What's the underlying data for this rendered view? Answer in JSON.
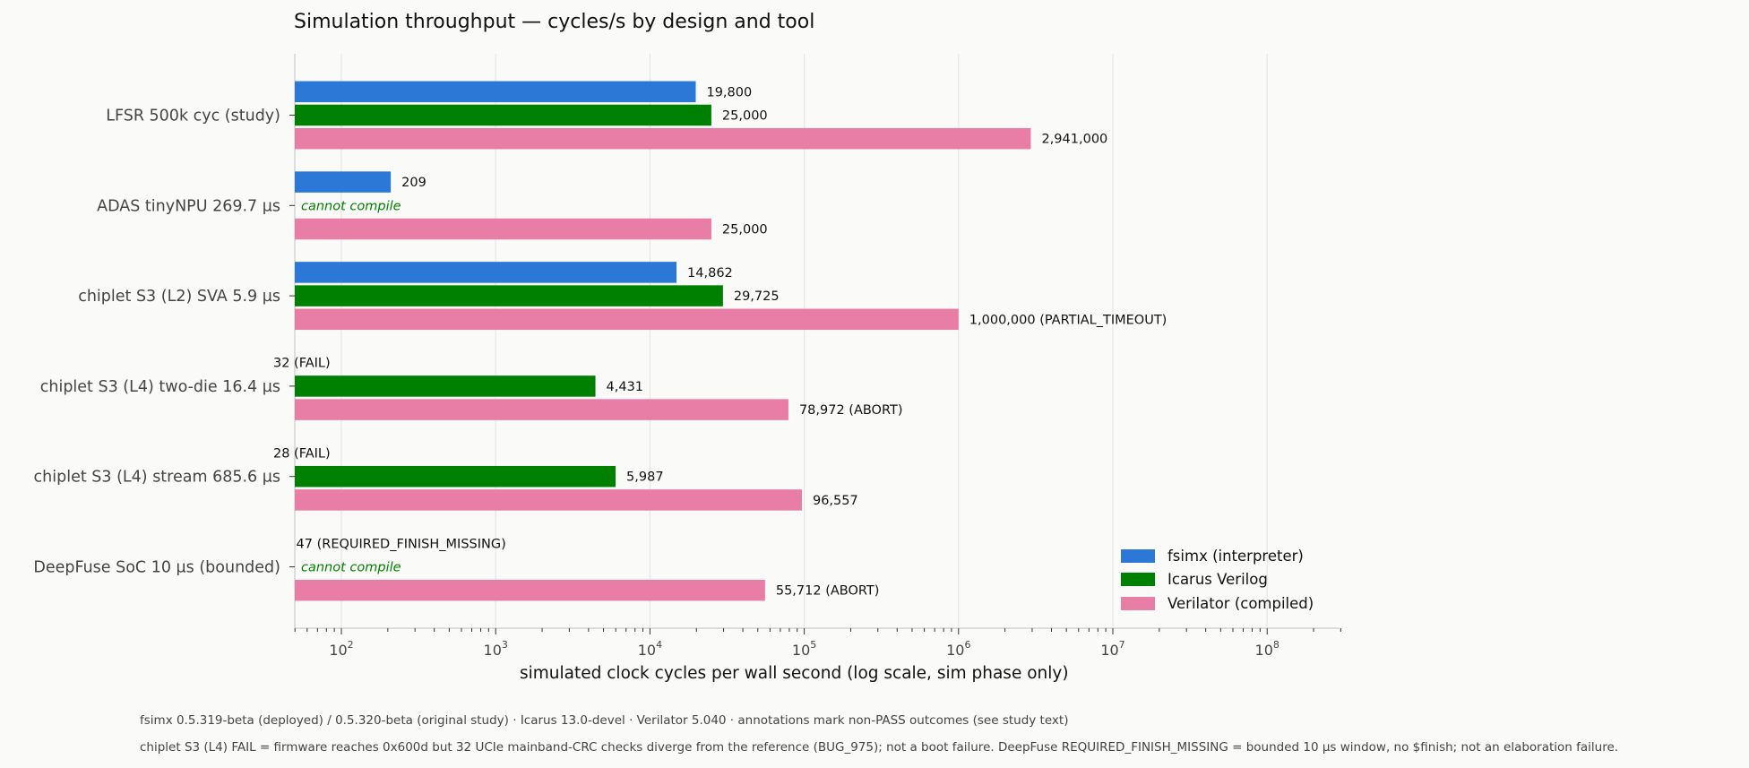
{
  "title": "Simulation throughput — cycles/s by design and tool",
  "xlabel": "simulated clock cycles per wall second (log scale, sim phase only)",
  "footnotes": [
    "fsimx 0.5.319-beta (deployed) / 0.5.320-beta (original study) · Icarus 13.0-devel · Verilator 5.040 · annotations mark non-PASS outcomes (see study text)",
    "chiplet S3 (L4) FAIL = firmware reaches 0x600d but 32 UCIe mainband-CRC checks diverge from the reference (BUG_975); not a boot failure.  DeepFuse REQUIRED_FINISH_MISSING = bounded 10 µs window, no $finish; not an elaboration failure."
  ],
  "colors": {
    "fsimx": "#2b78d6",
    "icarus": "#008000",
    "verilator": "#e87da6",
    "annotation_cannot_compile": "#008000"
  },
  "chart_data": {
    "type": "bar",
    "orientation": "horizontal",
    "x_scale": "log",
    "xlim": [
      50,
      300000000
    ],
    "x_ticks": [
      {
        "value": 100,
        "base": "10",
        "exp": "2"
      },
      {
        "value": 1000,
        "base": "10",
        "exp": "3"
      },
      {
        "value": 10000,
        "base": "10",
        "exp": "4"
      },
      {
        "value": 100000,
        "base": "10",
        "exp": "5"
      },
      {
        "value": 1000000,
        "base": "10",
        "exp": "6"
      },
      {
        "value": 10000000,
        "base": "10",
        "exp": "7"
      },
      {
        "value": 100000000,
        "base": "10",
        "exp": "8"
      }
    ],
    "grid": "vertical",
    "legend_position": "lower-right",
    "categories": [
      "LFSR 500k cyc (study)",
      "ADAS tinyNPU 269.7 µs",
      "chiplet S3 (L2) SVA 5.9 µs",
      "chiplet S3 (L4) two-die 16.4 µs",
      "chiplet S3 (L4) stream 685.6 µs",
      "DeepFuse SoC 10 µs (bounded)"
    ],
    "series": [
      {
        "name": "fsimx (interpreter)",
        "color_key": "fsimx",
        "values": [
          19800,
          209,
          14862,
          32,
          28,
          47
        ],
        "labels": [
          "19,800",
          "209",
          "14,862",
          "32  (FAIL)",
          "28  (FAIL)",
          "47  (REQUIRED_FINISH_MISSING)"
        ]
      },
      {
        "name": "Icarus Verilog",
        "color_key": "icarus",
        "values": [
          25000,
          null,
          29725,
          4431,
          5987,
          null
        ],
        "labels": [
          "25,000",
          "cannot compile",
          "29,725",
          "4,431",
          "5,987",
          "cannot compile"
        ]
      },
      {
        "name": "Verilator (compiled)",
        "color_key": "verilator",
        "values": [
          2941000,
          25000,
          1000000,
          78972,
          96557,
          55712
        ],
        "labels": [
          "2,941,000",
          "25,000",
          "1,000,000  (PARTIAL_TIMEOUT)",
          "78,972  (ABORT)",
          "96,557",
          "55,712  (ABORT)"
        ]
      }
    ]
  }
}
